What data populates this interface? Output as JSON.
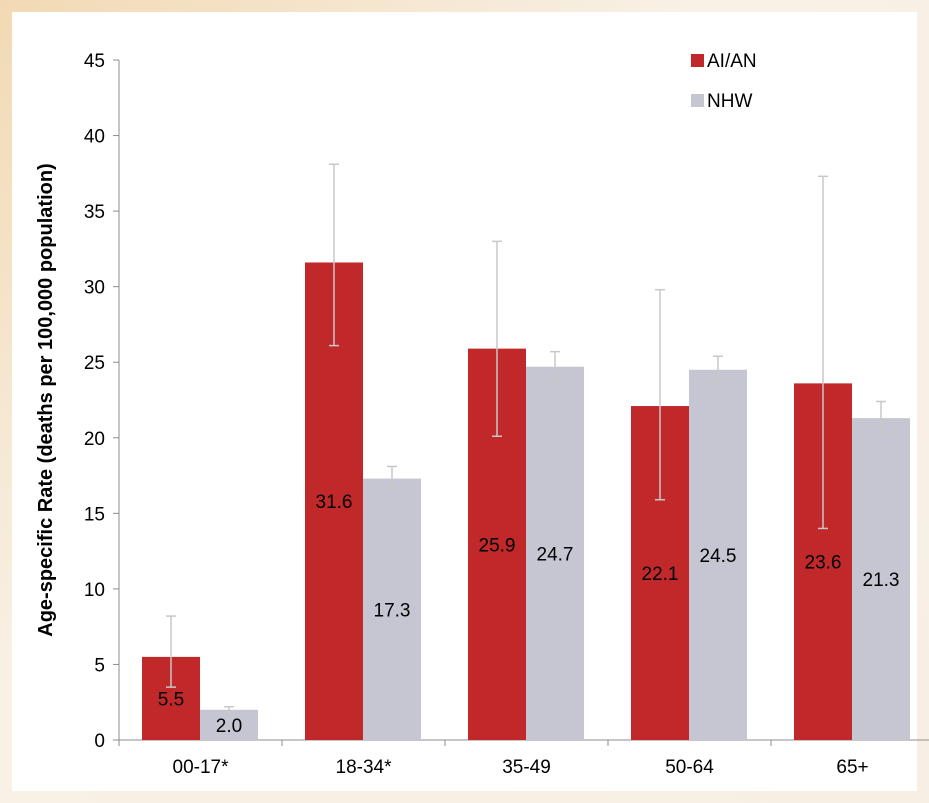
{
  "chart_data": {
    "type": "bar",
    "categories": [
      "00-17*",
      "18-34*",
      "35-49",
      "50-64",
      "65+"
    ],
    "series": [
      {
        "name": "AI/AN",
        "color": "#c0282a",
        "values": [
          5.5,
          31.6,
          25.9,
          22.1,
          23.6
        ],
        "error_low": [
          3.5,
          26.1,
          20.1,
          15.9,
          14.0
        ],
        "error_high": [
          8.2,
          38.1,
          33.0,
          29.8,
          37.3
        ]
      },
      {
        "name": "NHW",
        "color": "#c6c6d3",
        "values": [
          2.0,
          17.3,
          24.7,
          24.5,
          21.3
        ],
        "error_low": [
          1.8,
          16.5,
          23.7,
          23.6,
          20.3
        ],
        "error_high": [
          2.2,
          18.1,
          25.7,
          25.4,
          22.4
        ]
      }
    ],
    "value_labels": {
      "AI/AN": [
        "5.5",
        "31.6",
        "25.9",
        "22.1",
        "23.6"
      ],
      "NHW": [
        "2.0",
        "17.3",
        "24.7",
        "24.5",
        "21.3"
      ]
    },
    "title": "",
    "xlabel": "",
    "ylabel": "Age-specific Rate (deaths per 100,000 population)",
    "ylim": [
      0,
      45
    ],
    "yticks": [
      0,
      5,
      10,
      15,
      20,
      25,
      30,
      35,
      40,
      45
    ],
    "grid": false,
    "legend_position": "top-right",
    "error_bar_color": "#c8c8c8",
    "axis_color": "#8c8c8c"
  }
}
